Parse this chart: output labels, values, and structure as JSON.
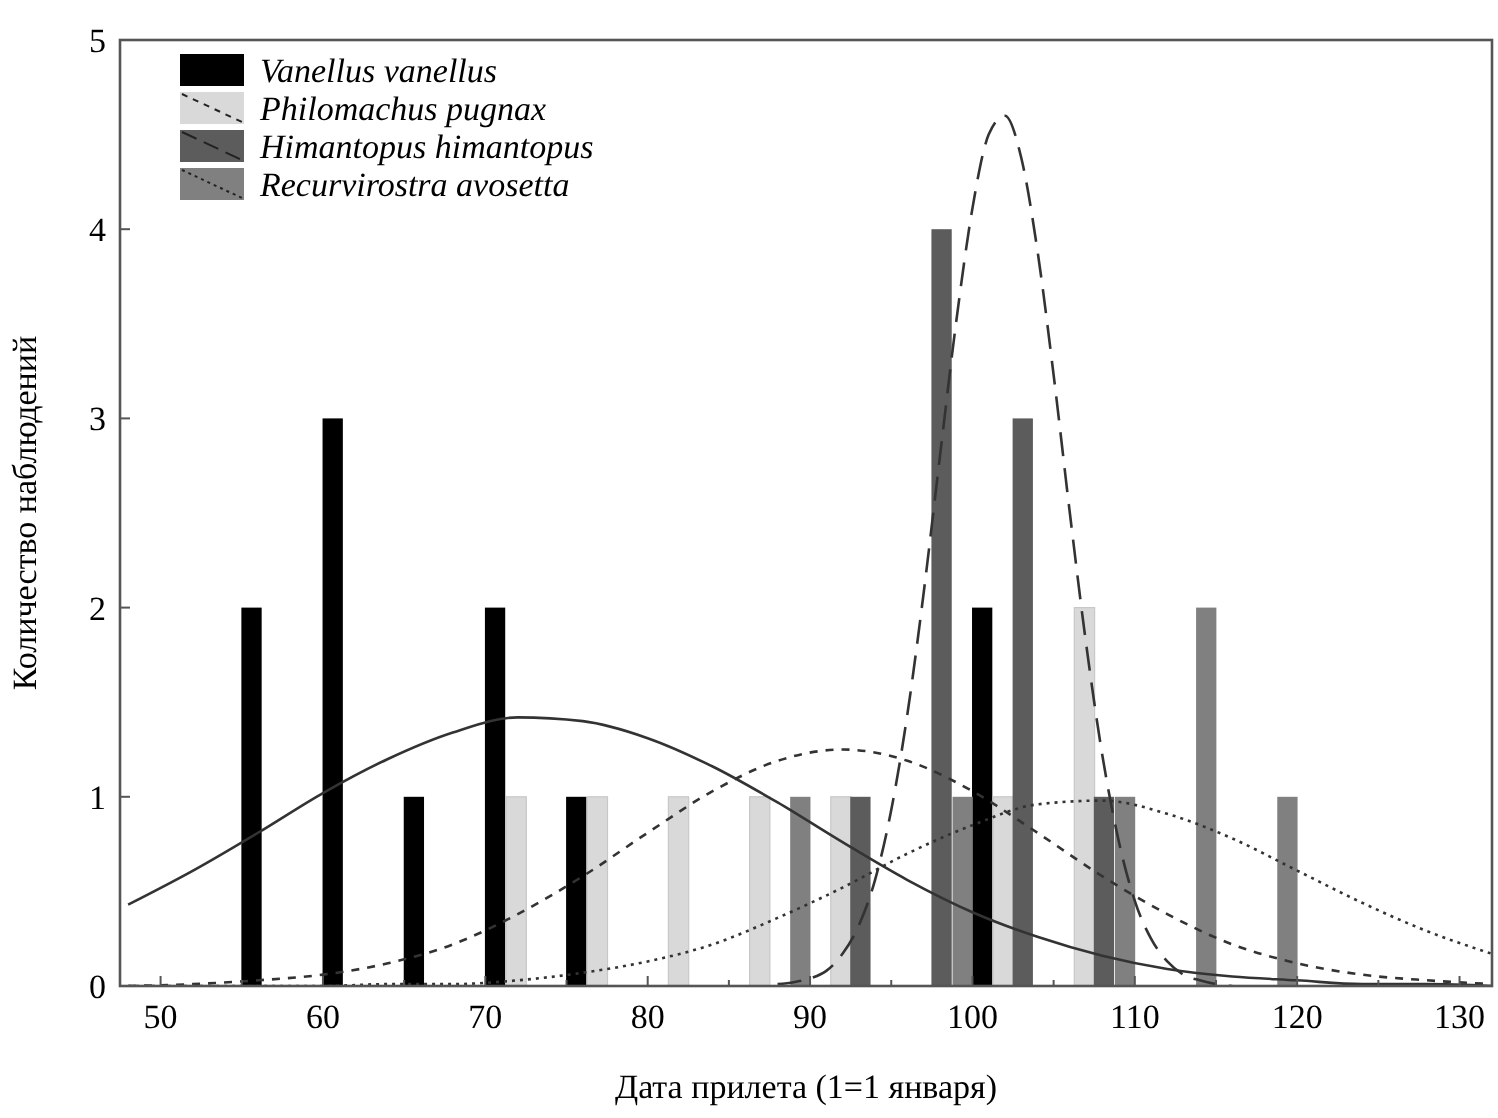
{
  "chart_data": {
    "type": "bar",
    "xlabel": "Дата прилета (1=1 января)",
    "ylabel": "Количество наблюдений",
    "xlim": [
      47.5,
      132
    ],
    "ylim": [
      0,
      5
    ],
    "xticks": [
      50,
      {
        "value": 55,
        "label": null
      },
      60,
      {
        "value": 65,
        "label": null
      },
      70,
      {
        "value": 75,
        "label": null
      },
      80,
      {
        "value": 85,
        "label": null
      },
      90,
      {
        "value": 95,
        "label": null
      },
      100,
      {
        "value": 105,
        "label": null
      },
      110,
      {
        "value": 115,
        "label": null
      },
      120,
      {
        "value": 125,
        "label": null
      },
      130
    ],
    "yticks": [
      0,
      1,
      2,
      3,
      4,
      5
    ],
    "legend": "top left",
    "grid": false,
    "series": [
      {
        "name": "Vanellus vanellus",
        "color": "#000000",
        "line_style": "solid",
        "x": [
          55.6,
          60.6,
          65.6,
          70.6,
          75.6,
          100.6
        ],
        "values": [
          2,
          3,
          1,
          2,
          1,
          2
        ]
      },
      {
        "name": "Philomachus pugnax",
        "color": "#d9d9d9",
        "line_style": "dashed",
        "x": [
          71.9,
          76.9,
          81.9,
          86.9,
          91.9,
          101.9,
          106.9
        ],
        "values": [
          1,
          1,
          1,
          1,
          1,
          1,
          2
        ]
      },
      {
        "name": "Himantopus himantopus",
        "color": "#5c5c5c",
        "line_style": "dashed",
        "x": [
          93.1,
          98.1,
          103.1,
          108.1
        ],
        "values": [
          1,
          4,
          3,
          1
        ]
      },
      {
        "name": "Recurvirostra avosetta",
        "color": "#808080",
        "line_style": "dotted",
        "x": [
          89.4,
          99.4,
          109.4,
          114.4,
          119.4
        ],
        "values": [
          1,
          1,
          1,
          2,
          1
        ]
      },
      {
        "type": "line",
        "color": "#333333",
        "line_style": "solid",
        "x": [
          48,
          52,
          56,
          60,
          64,
          68,
          72,
          76,
          80,
          84,
          88,
          92,
          96,
          100,
          104,
          108,
          112,
          116,
          120,
          124,
          128,
          132
        ],
        "values": [
          0.43,
          0.61,
          0.81,
          1.02,
          1.2,
          1.34,
          1.42,
          1.4,
          1.31,
          1.16,
          0.97,
          0.76,
          0.56,
          0.39,
          0.26,
          0.16,
          0.09,
          0.05,
          0.03,
          0.01,
          0.01,
          0
        ]
      },
      {
        "type": "line",
        "color": "#333333",
        "line_style": "dashed",
        "x": [
          48,
          52,
          56,
          60,
          64,
          68,
          72,
          76,
          80,
          84,
          88,
          92,
          96,
          100,
          104,
          108,
          112,
          116,
          120,
          124,
          128,
          132
        ],
        "values": [
          0,
          0.01,
          0.03,
          0.06,
          0.12,
          0.22,
          0.38,
          0.58,
          0.81,
          1.03,
          1.19,
          1.25,
          1.19,
          1.03,
          0.81,
          0.58,
          0.38,
          0.22,
          0.12,
          0.06,
          0.03,
          0.01
        ]
      },
      {
        "type": "line",
        "color": "#333333",
        "line_style": "dashed",
        "x": [
          88,
          89,
          90,
          91,
          92,
          93,
          94,
          95,
          96,
          97,
          98,
          99,
          100,
          101,
          102,
          103,
          104,
          105,
          106,
          107,
          108,
          109,
          110,
          111,
          112,
          113,
          114,
          115,
          116
        ],
        "values": [
          0.01,
          0.02,
          0.04,
          0.08,
          0.17,
          0.32,
          0.56,
          0.93,
          1.44,
          2.08,
          2.8,
          3.51,
          4.11,
          4.5,
          4.6,
          4.38,
          3.89,
          3.23,
          2.5,
          1.81,
          1.22,
          0.77,
          0.45,
          0.25,
          0.13,
          0.06,
          0.03,
          0.01,
          0
        ]
      },
      {
        "type": "line",
        "color": "#333333",
        "line_style": "dotted",
        "x": [
          48,
          52,
          56,
          60,
          64,
          68,
          72,
          76,
          80,
          84,
          88,
          92,
          96,
          100,
          104,
          108,
          112,
          116,
          120,
          124,
          128,
          132
        ],
        "values": [
          0,
          0,
          0,
          0,
          0.01,
          0.01,
          0.03,
          0.07,
          0.13,
          0.22,
          0.36,
          0.52,
          0.7,
          0.85,
          0.96,
          0.98,
          0.91,
          0.78,
          0.61,
          0.44,
          0.29,
          0.17
        ]
      }
    ]
  }
}
